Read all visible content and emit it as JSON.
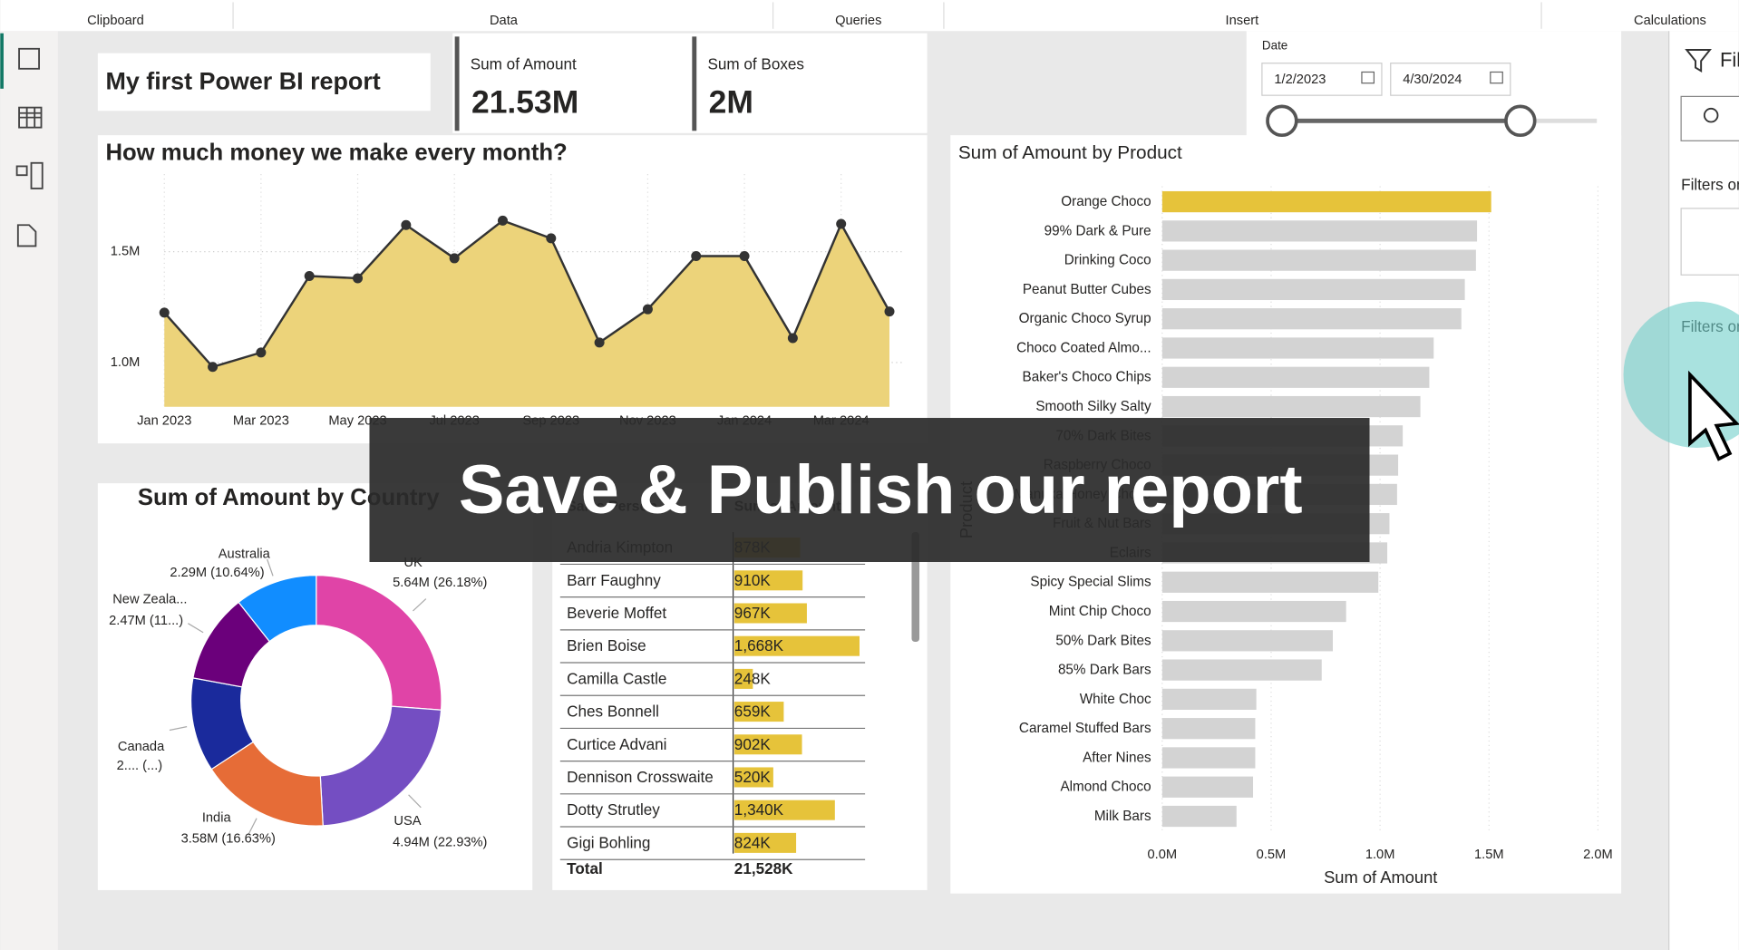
{
  "ribbon": {
    "groups": [
      "Clipboard",
      "Data",
      "Queries",
      "Insert",
      "Calculations"
    ]
  },
  "report_title": "My first Power BI report",
  "kpis": [
    {
      "label": "Sum of Amount",
      "value": "21.53M"
    },
    {
      "label": "Sum of Boxes",
      "value": "2M"
    }
  ],
  "date_slicer": {
    "label": "Date",
    "start": "1/2/2023",
    "end": "4/30/2024"
  },
  "filters_pane": {
    "title": "Filters",
    "sections": [
      "Filters on this page",
      "Filters on all pages"
    ]
  },
  "overlay_caption": "Save & Publish our report",
  "table": {
    "columns": [
      "Sales Person",
      "Sum of Amount"
    ],
    "names": [
      "Andria Kimpton",
      "Barr Faughny",
      "Beverie Moffet",
      "Brien Boise",
      "Camilla Castle",
      "Ches Bonnell",
      "Curtice Advani",
      "Dennison Crosswaite",
      "Dotty Strutley",
      "Gigi Bohling"
    ],
    "values": [
      878,
      910,
      967,
      1668,
      248,
      659,
      902,
      520,
      1340,
      824
    ],
    "value_labels": [
      "878K",
      "910K",
      "967K",
      "1,668K",
      "248K",
      "659K",
      "902K",
      "520K",
      "1,340K",
      "824K"
    ],
    "bar_color": "#e6c33a",
    "total": {
      "label": "Total",
      "value": "21,528K"
    }
  },
  "chart_data": [
    {
      "type": "area",
      "title": "How much money we make every month?",
      "x": [
        "Jan 2023",
        null,
        "Mar 2023",
        null,
        "May 2023",
        null,
        "Jul 2023",
        null,
        "Sep 2023",
        null,
        "Nov 2023",
        null,
        "Jan 2024",
        null,
        "Mar 2024",
        null
      ],
      "values": [
        1225000,
        980000,
        1045000,
        1390000,
        1380000,
        1620000,
        1470000,
        1640000,
        1560000,
        1090000,
        1240000,
        1480000,
        1480000,
        1110000,
        1625000,
        1230000
      ],
      "ylim": [
        800000,
        1850000
      ],
      "yticks": [
        {
          "value": 1000000,
          "label": "1.0M"
        },
        {
          "value": 1500000,
          "label": "1.5M"
        }
      ],
      "color": "#ecd37a",
      "line_color": "#333333",
      "grid": true
    },
    {
      "type": "donut",
      "title": "Sum of Amount by Country",
      "categories": [
        "UK",
        "USA",
        "India",
        "Canada",
        "New Zeala...",
        "Australia"
      ],
      "values": [
        5640000,
        4940000,
        3580000,
        2610000,
        2470000,
        2290000
      ],
      "value_labels": [
        "5.64M (26.18%)",
        "4.94M (22.93%)",
        "3.58M (16.63%)",
        "2.... (...)",
        "2.47M (11...)",
        "2.29M (10.64%)"
      ],
      "colors": [
        "#e044a7",
        "#744ec2",
        "#e66c37",
        "#1a2a9c",
        "#6b007b",
        "#118dff"
      ]
    },
    {
      "type": "hbar",
      "title": "Sum of Amount by Product",
      "x_label": "Sum of Amount",
      "y_label": "Product",
      "categories": [
        "Orange Choco",
        "99% Dark & Pure",
        "Drinking Coco",
        "Peanut Butter Cubes",
        "Organic Choco Syrup",
        "Choco Coated Almo...",
        "Baker's Choco Chips",
        "Smooth Silky Salty",
        "70% Dark Bites",
        "Raspberry Choco",
        "Manuka Honey Choco",
        "Fruit & Nut Bars",
        "Eclairs",
        "Spicy Special Slims",
        "Mint Chip Choco",
        "50% Dark Bites",
        "85% Dark Bars",
        "White Choc",
        "Caramel Stuffed Bars",
        "After Nines",
        "Almond Choco",
        "Milk Bars"
      ],
      "values": [
        1510000,
        1445000,
        1440000,
        1389000,
        1373000,
        1246000,
        1226000,
        1185000,
        1104000,
        1083000,
        1078000,
        1043000,
        1033000,
        992000,
        844000,
        783000,
        732000,
        432000,
        427000,
        427000,
        417000,
        341000
      ],
      "colors": [
        "#e6c33a",
        "#d3d3d3",
        "#d3d3d3",
        "#d3d3d3",
        "#d3d3d3",
        "#d3d3d3",
        "#d3d3d3",
        "#d3d3d3",
        "#d3d3d3",
        "#d3d3d3",
        "#d3d3d3",
        "#d3d3d3",
        "#d3d3d3",
        "#d3d3d3",
        "#d3d3d3",
        "#d3d3d3",
        "#d3d3d3",
        "#d3d3d3",
        "#d3d3d3",
        "#d3d3d3",
        "#d3d3d3",
        "#d3d3d3"
      ],
      "xlim": [
        0,
        2000000
      ],
      "xticks": [
        {
          "value": 0,
          "label": "0.0M"
        },
        {
          "value": 500000,
          "label": "0.5M"
        },
        {
          "value": 1000000,
          "label": "1.0M"
        },
        {
          "value": 1500000,
          "label": "1.5M"
        },
        {
          "value": 2000000,
          "label": "2.0M"
        }
      ],
      "grid": true
    }
  ]
}
